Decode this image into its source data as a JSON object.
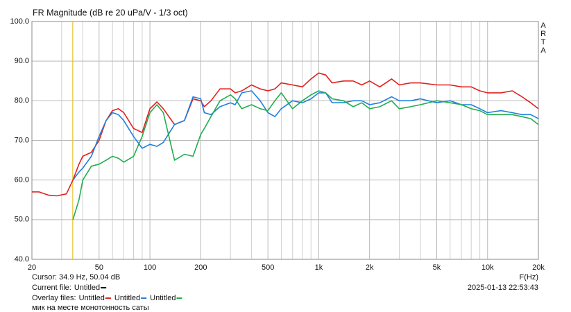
{
  "chart_data": {
    "type": "line",
    "title": "FR Magnitude (dB re 20 uPa/V - 1/3 oct)",
    "brand": "ARTA",
    "x_label": "F(Hz)",
    "log_x": true,
    "grid": true,
    "xlim": [
      20,
      20000
    ],
    "ylim": [
      40,
      100
    ],
    "xticks": [
      20,
      50,
      100,
      200,
      500,
      {
        "value": 1000,
        "label": "1k"
      },
      {
        "value": 2000,
        "label": "2k"
      },
      {
        "value": 5000,
        "label": "5k"
      },
      {
        "value": 10000,
        "label": "10k"
      },
      {
        "value": 20000,
        "label": "20k"
      }
    ],
    "x_minor_grid": [
      30,
      40,
      60,
      70,
      80,
      90,
      300,
      400,
      600,
      700,
      800,
      900,
      3000,
      4000,
      6000,
      7000,
      8000,
      9000
    ],
    "yticks": [
      {
        "value": 40,
        "label": "40.0"
      },
      {
        "value": 50,
        "label": "50.0"
      },
      {
        "value": 60,
        "label": "60.0"
      },
      {
        "value": 70,
        "label": "70.0"
      },
      {
        "value": 80,
        "label": "80.0"
      },
      {
        "value": 90,
        "label": "90.0"
      },
      {
        "value": 100,
        "label": "100.0"
      }
    ],
    "cursor": {
      "x": 34.9,
      "color": "#e8c22a",
      "label": "Cursor: 34.9 Hz, 50.04 dB"
    },
    "current_file": {
      "label": "Current file:",
      "name": "Untitled",
      "color": "#000000"
    },
    "overlay_label": "Overlay files:",
    "comment": "мик на месте монотонность саты",
    "timestamp": "2025-01-13  22:53:43",
    "x": [
      20,
      22,
      25,
      28,
      32,
      35,
      38,
      40,
      45,
      50,
      55,
      60,
      65,
      70,
      80,
      90,
      100,
      110,
      120,
      140,
      160,
      180,
      200,
      210,
      230,
      260,
      300,
      320,
      350,
      400,
      450,
      500,
      550,
      600,
      700,
      800,
      900,
      1000,
      1100,
      1200,
      1400,
      1600,
      1800,
      2000,
      2300,
      2700,
      3000,
      3500,
      4000,
      5000,
      6000,
      7000,
      8000,
      9000,
      10000,
      12000,
      14000,
      16000,
      18000,
      20000
    ],
    "series": [
      {
        "name": "Untitled",
        "color": "#e0201c",
        "values": [
          57,
          57,
          56.2,
          56,
          56.5,
          60,
          64,
          66,
          67,
          70,
          75,
          77.5,
          78,
          77,
          73,
          72,
          78,
          79.7,
          78,
          74,
          75,
          80.5,
          80,
          78.5,
          80,
          83,
          83,
          82,
          82.5,
          84,
          83,
          82.5,
          83,
          84.5,
          84,
          83.5,
          85.5,
          87,
          86.5,
          84.5,
          85,
          85,
          84,
          85,
          83.5,
          85.5,
          84,
          84.5,
          84.5,
          84,
          84,
          83.5,
          83.5,
          82.5,
          82,
          82,
          82.5,
          81,
          79.5,
          78
        ]
      },
      {
        "name": "Untitled",
        "color": "#1f7fe0",
        "values": [
          null,
          null,
          null,
          null,
          null,
          60,
          62,
          63,
          66,
          71,
          75,
          77,
          76.5,
          75,
          71,
          68,
          69,
          68.5,
          69.5,
          74,
          75,
          81,
          80.5,
          77,
          76.5,
          78.5,
          79.5,
          79,
          82,
          82.5,
          80,
          77,
          76,
          78,
          80,
          79.5,
          80.5,
          82,
          82,
          79.5,
          79.5,
          80,
          80,
          79,
          79.5,
          81,
          80,
          80,
          80.5,
          79.5,
          80,
          79,
          79,
          78,
          77,
          77.5,
          77,
          76.5,
          76.5,
          75.5
        ]
      },
      {
        "name": "Untitled",
        "color": "#1fae4e",
        "values": [
          null,
          null,
          null,
          null,
          null,
          50,
          55,
          60,
          63.5,
          64,
          65,
          66,
          65.5,
          64.5,
          66,
          71,
          77,
          79,
          77,
          65,
          66.5,
          66,
          71.5,
          73,
          76,
          80,
          81.5,
          80.5,
          78,
          79,
          78,
          77.5,
          80,
          82,
          78,
          80,
          81.5,
          82.5,
          82,
          80.5,
          80,
          78.5,
          79.5,
          78,
          78.5,
          80,
          78,
          78.5,
          79,
          80,
          79.5,
          79,
          78,
          77.5,
          76.5,
          76.5,
          76.5,
          76,
          75.5,
          74
        ]
      }
    ]
  }
}
